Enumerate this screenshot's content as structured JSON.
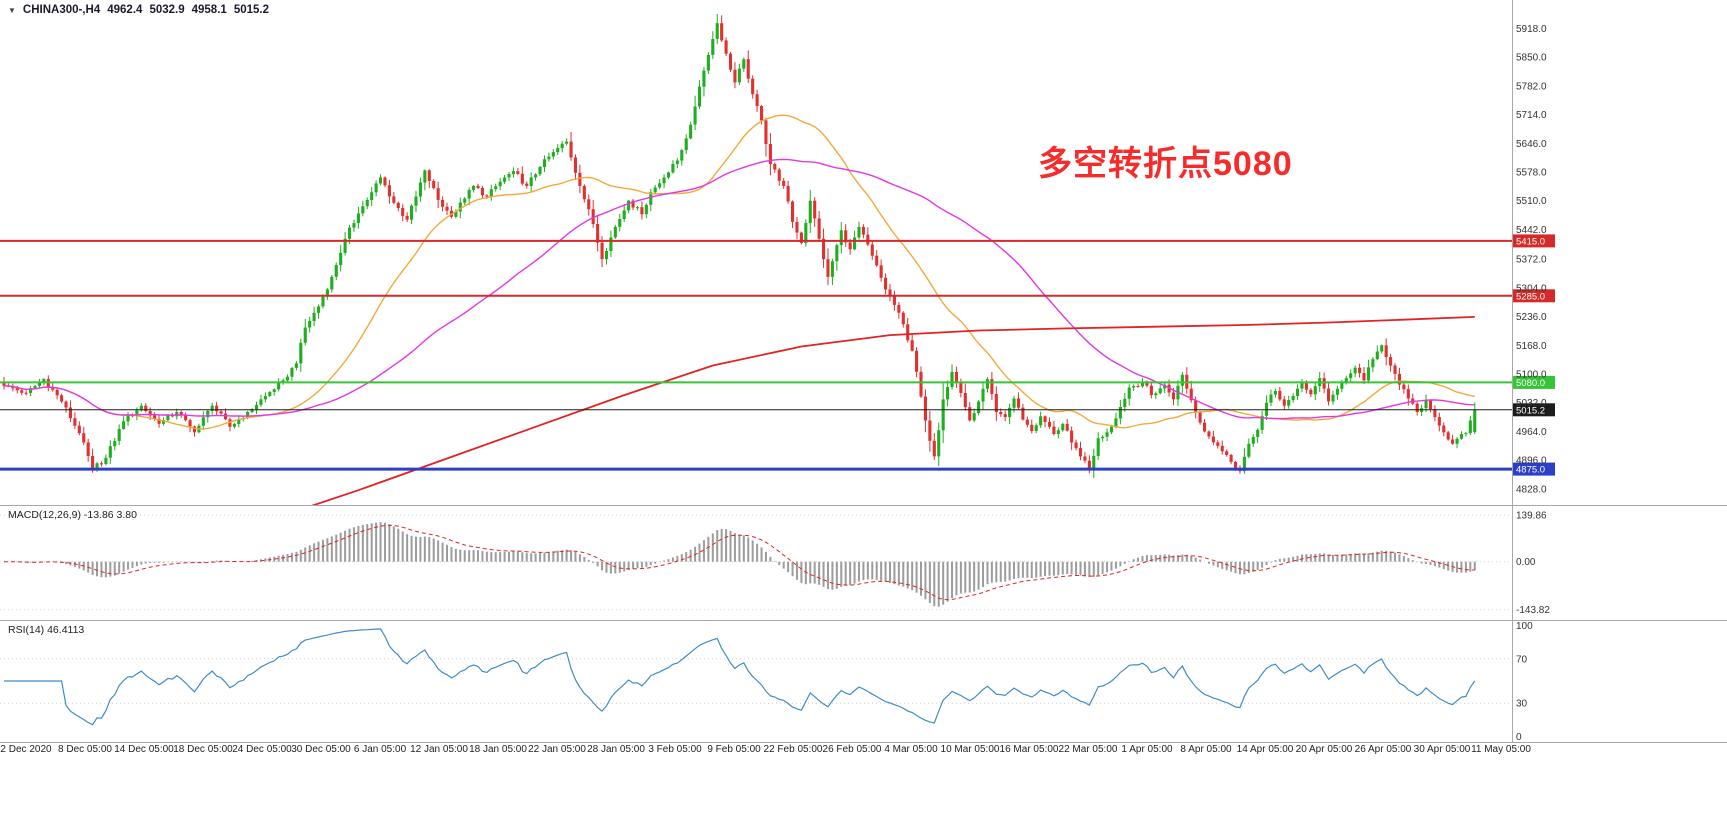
{
  "header": {
    "marker": "▼",
    "symbol_period": "CHINA300-,H4",
    "open": "4962.4",
    "high": "5032.9",
    "low": "4958.1",
    "close": "5015.2"
  },
  "annotation": {
    "text": "多空转折点5080",
    "color": "#f62b2b"
  },
  "indicators": {
    "macd_label": "MACD(12,26,9) -13.86 3.80",
    "rsi_label": "RSI(14) 46.4113"
  },
  "chart_data": [
    {
      "type": "candlestick",
      "symbol": "CHINA300-",
      "timeframe": "H4",
      "last_candle": {
        "open": 4962.4,
        "high": 5032.9,
        "low": 4958.1,
        "close": 5015.2
      },
      "ylim": [
        4790,
        5985
      ],
      "y_ticks": [
        5918.0,
        5850.0,
        5782.0,
        5714.0,
        5646.0,
        5578.0,
        5510.0,
        5442.0,
        5372.0,
        5304.0,
        5236.0,
        5168.0,
        5100.0,
        5032.0,
        4964.0,
        4896.0,
        4828.0
      ],
      "x_tick_labels": [
        "2 Dec 2020",
        "8 Dec 05:00",
        "14 Dec 05:00",
        "18 Dec 05:00",
        "24 Dec 05:00",
        "30 Dec 05:00",
        "6 Jan 05:00",
        "12 Jan 05:00",
        "18 Jan 05:00",
        "22 Jan 05:00",
        "28 Jan 05:00",
        "3 Feb 05:00",
        "9 Feb 05:00",
        "22 Feb 05:00",
        "26 Feb 05:00",
        "4 Mar 05:00",
        "10 Mar 05:00",
        "16 Mar 05:00",
        "22 Mar 05:00",
        "1 Apr 05:00",
        "8 Apr 05:00",
        "14 Apr 05:00",
        "20 Apr 05:00",
        "26 Apr 05:00",
        "30 Apr 05:00",
        "11 May 05:00"
      ],
      "bars_total": 333,
      "up_color": "#1fae1f",
      "down_color": "#e03030",
      "close_waypoints": [
        [
          0,
          5072
        ],
        [
          5,
          5055
        ],
        [
          9,
          5088
        ],
        [
          13,
          5035
        ],
        [
          17,
          4960
        ],
        [
          20,
          4875
        ],
        [
          23,
          4902
        ],
        [
          27,
          4988
        ],
        [
          31,
          5025
        ],
        [
          35,
          4982
        ],
        [
          39,
          5010
        ],
        [
          43,
          4962
        ],
        [
          47,
          5025
        ],
        [
          51,
          4975
        ],
        [
          55,
          5010
        ],
        [
          59,
          5048
        ],
        [
          63,
          5085
        ],
        [
          66,
          5125
        ],
        [
          68,
          5210
        ],
        [
          71,
          5260
        ],
        [
          74,
          5330
        ],
        [
          77,
          5420
        ],
        [
          80,
          5480
        ],
        [
          83,
          5530
        ],
        [
          85,
          5565
        ],
        [
          88,
          5505
        ],
        [
          91,
          5465
        ],
        [
          93,
          5520
        ],
        [
          95,
          5582
        ],
        [
          98,
          5512
        ],
        [
          101,
          5472
        ],
        [
          104,
          5515
        ],
        [
          106,
          5545
        ],
        [
          109,
          5520
        ],
        [
          112,
          5555
        ],
        [
          115,
          5580
        ],
        [
          118,
          5545
        ],
        [
          121,
          5590
        ],
        [
          124,
          5625
        ],
        [
          127,
          5650
        ],
        [
          130,
          5545
        ],
        [
          133,
          5455
        ],
        [
          135,
          5372
        ],
        [
          138,
          5448
        ],
        [
          141,
          5510
        ],
        [
          144,
          5478
        ],
        [
          146,
          5530
        ],
        [
          149,
          5565
        ],
        [
          152,
          5605
        ],
        [
          155,
          5690
        ],
        [
          157,
          5780
        ],
        [
          159,
          5855
        ],
        [
          161,
          5930
        ],
        [
          163,
          5858
        ],
        [
          165,
          5790
        ],
        [
          167,
          5845
        ],
        [
          169,
          5762
        ],
        [
          171,
          5700
        ],
        [
          173,
          5597
        ],
        [
          176,
          5545
        ],
        [
          178,
          5460
        ],
        [
          180,
          5410
        ],
        [
          182,
          5510
        ],
        [
          184,
          5420
        ],
        [
          186,
          5330
        ],
        [
          189,
          5440
        ],
        [
          191,
          5395
        ],
        [
          193,
          5448
        ],
        [
          196,
          5380
        ],
        [
          199,
          5300
        ],
        [
          202,
          5245
        ],
        [
          205,
          5155
        ],
        [
          208,
          4990
        ],
        [
          210,
          4905
        ],
        [
          212,
          5040
        ],
        [
          214,
          5105
        ],
        [
          216,
          5055
        ],
        [
          218,
          4990
        ],
        [
          220,
          5035
        ],
        [
          222,
          5088
        ],
        [
          224,
          5010
        ],
        [
          226,
          4998
        ],
        [
          228,
          5042
        ],
        [
          230,
          4992
        ],
        [
          232,
          4965
        ],
        [
          234,
          5000
        ],
        [
          237,
          4958
        ],
        [
          239,
          4982
        ],
        [
          241,
          4938
        ],
        [
          243,
          4905
        ],
        [
          245,
          4872
        ],
        [
          247,
          4948
        ],
        [
          249,
          4962
        ],
        [
          251,
          4995
        ],
        [
          252,
          5022
        ],
        [
          254,
          5068
        ],
        [
          257,
          5082
        ],
        [
          259,
          5050
        ],
        [
          262,
          5075
        ],
        [
          264,
          5040
        ],
        [
          266,
          5098
        ],
        [
          268,
          5038
        ],
        [
          270,
          4985
        ],
        [
          272,
          4952
        ],
        [
          274,
          4930
        ],
        [
          277,
          4892
        ],
        [
          279,
          4870
        ],
        [
          281,
          4935
        ],
        [
          283,
          4968
        ],
        [
          285,
          5032
        ],
        [
          287,
          5060
        ],
        [
          289,
          5025
        ],
        [
          291,
          5048
        ],
        [
          293,
          5080
        ],
        [
          295,
          5052
        ],
        [
          297,
          5090
        ],
        [
          299,
          5035
        ],
        [
          301,
          5065
        ],
        [
          303,
          5090
        ],
        [
          305,
          5115
        ],
        [
          307,
          5085
        ],
        [
          309,
          5135
        ],
        [
          311,
          5168
        ],
        [
          313,
          5120
        ],
        [
          315,
          5075
        ],
        [
          317,
          5042
        ],
        [
          319,
          5010
        ],
        [
          321,
          5038
        ],
        [
          323,
          4998
        ],
        [
          325,
          4962
        ],
        [
          327,
          4935
        ],
        [
          330,
          4960
        ],
        [
          332,
          5015.2
        ]
      ],
      "levels": [
        {
          "price": 5415.0,
          "label": "5415.0",
          "color": "#d42a2a",
          "thickness": 2
        },
        {
          "price": 5285.0,
          "label": "5285.0",
          "color": "#d42a2a",
          "thickness": 2
        },
        {
          "price": 5080.0,
          "label": "5080.0",
          "color": "#35c435",
          "thickness": 2
        },
        {
          "price": 4875.0,
          "label": "4875.0",
          "color": "#2b3fc8",
          "thickness": 3
        },
        {
          "price": 5015.2,
          "label": "5015.2",
          "color": "#1c1c1c",
          "thickness": 1
        }
      ],
      "moving_averages": [
        {
          "name": "ma-fast",
          "color": "#f2a93b",
          "period": 30
        },
        {
          "name": "ma-mid",
          "color": "#e238e2",
          "period": 72
        },
        {
          "name": "ma-slow",
          "color": "#e32222",
          "waypoints": [
            [
              60,
              4755
            ],
            [
              80,
              4825
            ],
            [
              100,
              4900
            ],
            [
              120,
              4975
            ],
            [
              140,
              5050
            ],
            [
              160,
              5120
            ],
            [
              180,
              5165
            ],
            [
              200,
              5192
            ],
            [
              220,
              5203
            ],
            [
              240,
              5208
            ],
            [
              260,
              5212
            ],
            [
              280,
              5216
            ],
            [
              300,
              5222
            ],
            [
              332,
              5235
            ]
          ]
        }
      ]
    },
    {
      "type": "macd",
      "label": "MACD(12,26,9) -13.86 3.80",
      "fast": 12,
      "slow": 26,
      "signal": 9,
      "current_macd": -13.86,
      "current_signal": 3.8,
      "y_ticks": [
        139.86,
        0.0,
        -143.82
      ],
      "ylim": [
        -175,
        170
      ],
      "histogram_color": "#9c9c9c",
      "signal_color": "#e32222"
    },
    {
      "type": "rsi",
      "label": "RSI(14) 46.4113",
      "period": 14,
      "current": 46.4113,
      "y_ticks": [
        100,
        70,
        30,
        0
      ],
      "level_lines": [
        70,
        30
      ],
      "ylim": [
        -5,
        105
      ],
      "line_color": "#3f8cc8"
    }
  ]
}
